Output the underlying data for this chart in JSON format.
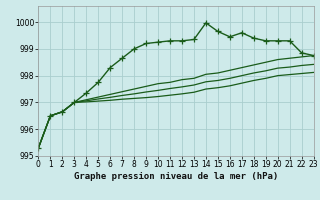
{
  "title": "Graphe pression niveau de la mer (hPa)",
  "background_color": "#ceeaea",
  "grid_color": "#aacece",
  "line_color": "#1a5c1a",
  "xlim": [
    0,
    23
  ],
  "ylim": [
    995,
    1000.6
  ],
  "yticks": [
    995,
    996,
    997,
    998,
    999,
    1000
  ],
  "xticks": [
    0,
    1,
    2,
    3,
    4,
    5,
    6,
    7,
    8,
    9,
    10,
    11,
    12,
    13,
    14,
    15,
    16,
    17,
    18,
    19,
    20,
    21,
    22,
    23
  ],
  "series": [
    {
      "x": [
        0,
        1,
        2,
        3,
        4,
        5,
        6,
        7,
        8,
        9,
        10,
        11,
        12,
        13,
        14,
        15,
        16,
        17,
        18,
        19,
        20,
        21,
        22,
        23
      ],
      "y": [
        995.3,
        996.5,
        996.65,
        997.0,
        997.35,
        997.75,
        998.3,
        998.65,
        999.0,
        999.2,
        999.25,
        999.3,
        999.3,
        999.35,
        999.97,
        999.65,
        999.45,
        999.6,
        999.4,
        999.3,
        999.3,
        999.3,
        998.85,
        998.75
      ],
      "marker": "+",
      "markersize": 4,
      "linewidth": 1.0,
      "linestyle": "-"
    },
    {
      "x": [
        0,
        1,
        2,
        3,
        4,
        5,
        6,
        7,
        8,
        9,
        10,
        11,
        12,
        13,
        14,
        15,
        16,
        17,
        18,
        19,
        20,
        21,
        22,
        23
      ],
      "y": [
        995.3,
        996.5,
        996.65,
        997.0,
        997.1,
        997.2,
        997.3,
        997.4,
        997.5,
        997.6,
        997.7,
        997.75,
        997.85,
        997.9,
        998.05,
        998.1,
        998.2,
        998.3,
        998.4,
        998.5,
        998.6,
        998.65,
        998.7,
        998.75
      ],
      "marker": null,
      "markersize": 0,
      "linewidth": 0.9,
      "linestyle": "-"
    },
    {
      "x": [
        0,
        1,
        2,
        3,
        4,
        5,
        6,
        7,
        8,
        9,
        10,
        11,
        12,
        13,
        14,
        15,
        16,
        17,
        18,
        19,
        20,
        21,
        22,
        23
      ],
      "y": [
        995.3,
        996.5,
        996.65,
        997.0,
        997.06,
        997.13,
        997.19,
        997.26,
        997.32,
        997.39,
        997.45,
        997.52,
        997.58,
        997.65,
        997.77,
        997.82,
        997.9,
        998.0,
        998.1,
        998.18,
        998.28,
        998.32,
        998.38,
        998.42
      ],
      "marker": null,
      "markersize": 0,
      "linewidth": 0.9,
      "linestyle": "-"
    },
    {
      "x": [
        0,
        1,
        2,
        3,
        4,
        5,
        6,
        7,
        8,
        9,
        10,
        11,
        12,
        13,
        14,
        15,
        16,
        17,
        18,
        19,
        20,
        21,
        22,
        23
      ],
      "y": [
        995.3,
        996.5,
        996.65,
        997.0,
        997.02,
        997.05,
        997.08,
        997.12,
        997.15,
        997.18,
        997.22,
        997.27,
        997.32,
        997.38,
        997.5,
        997.55,
        997.62,
        997.72,
        997.82,
        997.9,
        998.0,
        998.04,
        998.08,
        998.12
      ],
      "marker": null,
      "markersize": 0,
      "linewidth": 0.9,
      "linestyle": "-"
    }
  ],
  "ylabel_fontsize": 5.5,
  "xlabel_fontsize": 6.5,
  "tick_fontsize": 5.5
}
